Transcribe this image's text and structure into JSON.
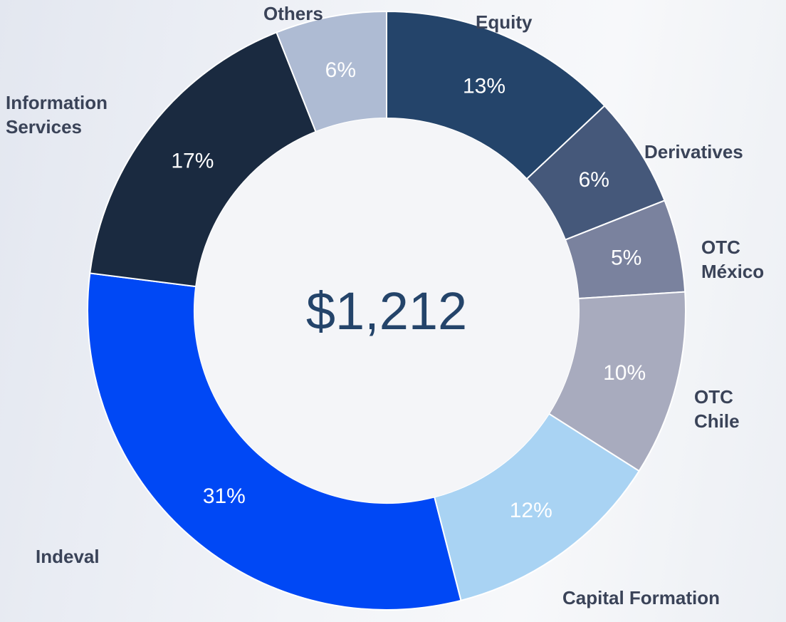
{
  "chart_data": {
    "type": "donut",
    "categories": [
      "Equity",
      "Derivatives",
      "OTC México",
      "OTC Chile",
      "Capital Formation",
      "Indeval",
      "Information Services",
      "Others"
    ],
    "values": [
      13,
      6,
      5,
      10,
      12,
      31,
      17,
      6
    ],
    "value_labels": [
      "13%",
      "6%",
      "5%",
      "10%",
      "12%",
      "31%",
      "17%",
      "6%"
    ],
    "colors": [
      "#24446a",
      "#45587a",
      "#7a829e",
      "#a8abbe",
      "#a9d3f3",
      "#0048f5",
      "#1a2a40",
      "#aebbd3"
    ],
    "center_text": "$1,212"
  }
}
